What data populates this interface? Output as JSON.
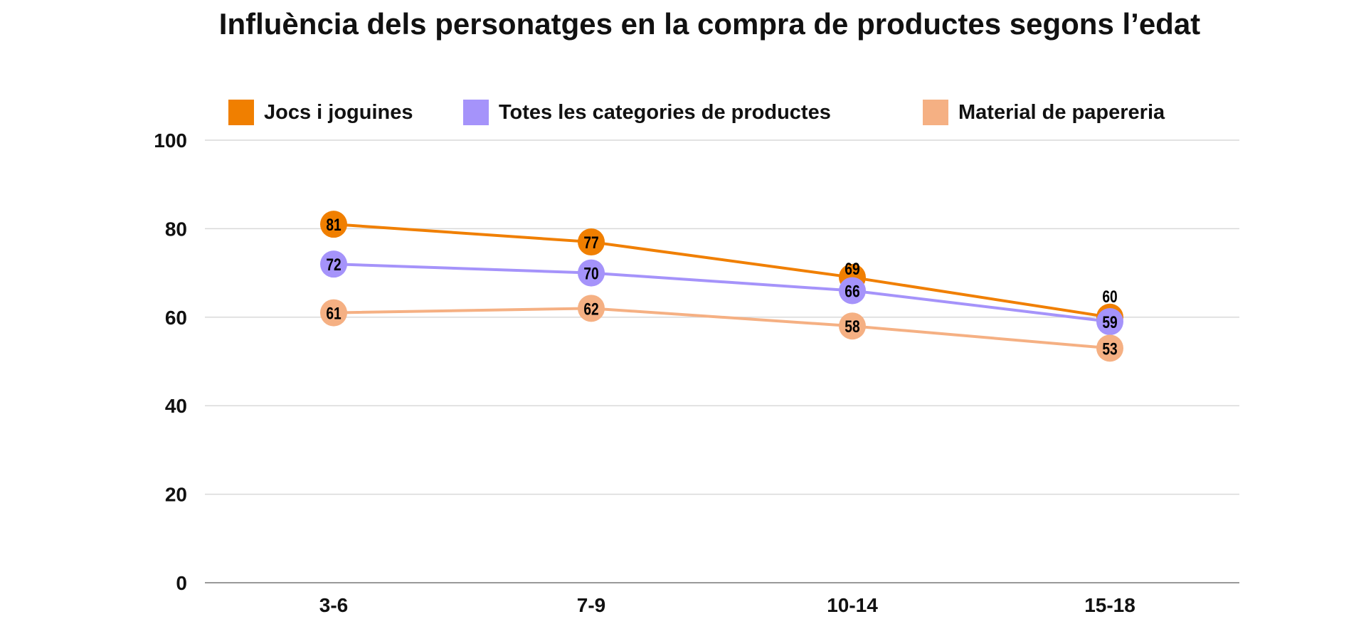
{
  "chart_data": {
    "type": "line",
    "title": "Influència dels personatges en la compra de productes segons l’edat",
    "categories": [
      "3-6",
      "7-9",
      "10-14",
      "15-18"
    ],
    "series": [
      {
        "name": "Jocs i joguines",
        "color": "#f07f00",
        "values": [
          81,
          77,
          69,
          60
        ]
      },
      {
        "name": "Totes les categories de productes",
        "color": "#a593fa",
        "values": [
          72,
          70,
          66,
          59
        ]
      },
      {
        "name": "Material de papereria",
        "color": "#f5b083",
        "values": [
          61,
          62,
          58,
          53
        ]
      }
    ],
    "ylim": [
      0,
      100
    ],
    "yticks": [
      0,
      20,
      40,
      60,
      80,
      100
    ],
    "grid": true,
    "legend": "top",
    "data_labels": true
  }
}
